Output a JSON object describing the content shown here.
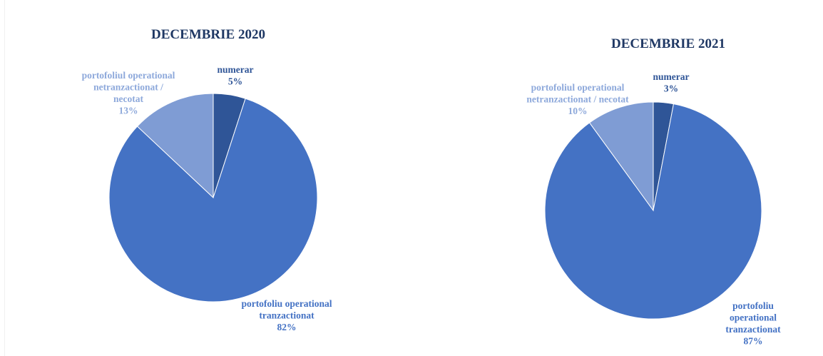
{
  "chart_data": [
    {
      "type": "pie",
      "title": "DECEMBRIE 2020",
      "slices": [
        {
          "label_lines": [
            "numerar",
            "5%"
          ],
          "value": 5,
          "color": "#2f5597",
          "text_color": "#2f5597"
        },
        {
          "label_lines": [
            "portofoliu operational",
            "tranzactionat",
            "82%"
          ],
          "value": 82,
          "color": "#4472c4",
          "text_color": "#4472c4"
        },
        {
          "label_lines": [
            "portofoliul operational",
            "netranzactionat /",
            "necotat",
            "13%"
          ],
          "value": 13,
          "color": "#7f9cd4",
          "text_color": "#8ea9db"
        }
      ]
    },
    {
      "type": "pie",
      "title": "DECEMBRIE 2021",
      "slices": [
        {
          "label_lines": [
            "numerar",
            "3%"
          ],
          "value": 3,
          "color": "#2f5597",
          "text_color": "#2f5597"
        },
        {
          "label_lines": [
            "portofoliu",
            "operational",
            "tranzactionat",
            "87%"
          ],
          "value": 87,
          "color": "#4472c4",
          "text_color": "#4472c4"
        },
        {
          "label_lines": [
            "portofoliul operational",
            "netranzactionat / necotat",
            "10%"
          ],
          "value": 10,
          "color": "#7f9cd4",
          "text_color": "#8ea9db"
        }
      ]
    }
  ]
}
